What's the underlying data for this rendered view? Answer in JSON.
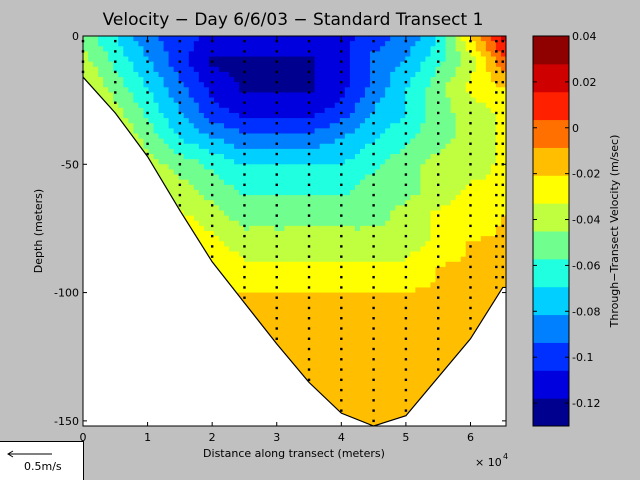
{
  "colors": {
    "background": "#c0c0c0",
    "colormap": [
      "#00008f",
      "#0000df",
      "#0030ff",
      "#0080ff",
      "#00cfff",
      "#20ffdf",
      "#70ff8f",
      "#bfff40",
      "#ffff00",
      "#ffbf00",
      "#ff7000",
      "#ff2000",
      "#cf0000",
      "#8f0000"
    ]
  },
  "chart_data": [
    {
      "type": "heatmap",
      "title": "Velocity − Day 6/6/03 − Standard Transect 1",
      "xlabel": "Distance along transect (meters)",
      "ylabel": "Depth (meters)",
      "x_multiplier": "× 10",
      "x_multiplier_exp": "4",
      "xlim": [
        0,
        65500
      ],
      "ylim": [
        -152,
        0
      ],
      "x_ticks": [
        "0",
        "1",
        "2",
        "3",
        "4",
        "5",
        "6"
      ],
      "y_ticks": [
        "0",
        "-50",
        "-100",
        "-150"
      ],
      "x_tick_values": [
        0,
        10000,
        20000,
        30000,
        40000,
        50000,
        60000
      ],
      "y_tick_values": [
        0,
        -50,
        -100,
        -150
      ],
      "grid": false,
      "bottom_profile": {
        "x": [
          0,
          5000,
          10000,
          15000,
          20000,
          25000,
          30000,
          35000,
          40000,
          45000,
          50000,
          55000,
          60000,
          65000,
          65500
        ],
        "depth": [
          -16,
          -30,
          -47,
          -68,
          -88,
          -104,
          -120,
          -135,
          -147,
          -152,
          -148,
          -133,
          -118,
          -98,
          -98
        ]
      },
      "velocity_field": {
        "z_unit": "m/sec",
        "x": [
          0,
          5000,
          10000,
          15000,
          20000,
          25000,
          30000,
          35000,
          40000,
          45000,
          50000,
          55000,
          60000,
          65000
        ],
        "depth": [
          0,
          -10,
          -20,
          -30,
          -40,
          -50,
          -60,
          -70,
          -80,
          -90,
          -100,
          -110,
          -120,
          -130,
          -140,
          -150
        ],
        "values": [
          [
            -0.05,
            -0.07,
            -0.09,
            -0.1,
            -0.11,
            -0.11,
            -0.11,
            -0.11,
            -0.11,
            -0.1,
            -0.09,
            -0.07,
            -0.02,
            0.02
          ],
          [
            -0.04,
            -0.06,
            -0.08,
            -0.1,
            -0.12,
            -0.12,
            -0.12,
            -0.12,
            -0.11,
            -0.09,
            -0.08,
            -0.06,
            -0.04,
            0.0
          ],
          [
            -0.03,
            -0.05,
            -0.07,
            -0.09,
            -0.11,
            -0.12,
            -0.12,
            -0.12,
            -0.11,
            -0.09,
            -0.07,
            -0.05,
            -0.03,
            -0.02
          ],
          [
            -0.02,
            -0.04,
            -0.06,
            -0.08,
            -0.1,
            -0.11,
            -0.11,
            -0.11,
            -0.1,
            -0.08,
            -0.07,
            -0.05,
            -0.04,
            -0.03
          ],
          [
            -0.02,
            -0.03,
            -0.05,
            -0.07,
            -0.08,
            -0.09,
            -0.09,
            -0.09,
            -0.08,
            -0.07,
            -0.06,
            -0.05,
            -0.04,
            -0.03
          ],
          [
            -0.02,
            -0.02,
            -0.04,
            -0.05,
            -0.06,
            -0.07,
            -0.07,
            -0.07,
            -0.07,
            -0.06,
            -0.05,
            -0.04,
            -0.04,
            -0.03
          ],
          [
            -0.02,
            -0.02,
            -0.03,
            -0.04,
            -0.05,
            -0.06,
            -0.06,
            -0.06,
            -0.06,
            -0.05,
            -0.05,
            -0.04,
            -0.03,
            -0.03
          ],
          [
            -0.02,
            -0.02,
            -0.02,
            -0.03,
            -0.04,
            -0.05,
            -0.05,
            -0.05,
            -0.05,
            -0.05,
            -0.04,
            -0.03,
            -0.03,
            -0.02
          ],
          [
            -0.02,
            -0.02,
            -0.02,
            -0.02,
            -0.03,
            -0.04,
            -0.04,
            -0.04,
            -0.04,
            -0.04,
            -0.04,
            -0.03,
            -0.02,
            -0.02
          ],
          [
            -0.02,
            -0.02,
            -0.02,
            -0.02,
            -0.02,
            -0.03,
            -0.03,
            -0.03,
            -0.03,
            -0.03,
            -0.03,
            -0.02,
            -0.02,
            -0.01
          ],
          [
            -0.02,
            -0.02,
            -0.02,
            -0.02,
            -0.02,
            -0.02,
            -0.02,
            -0.02,
            -0.02,
            -0.02,
            -0.02,
            -0.02,
            -0.02,
            -0.01
          ],
          [
            -0.02,
            -0.02,
            -0.02,
            -0.02,
            -0.02,
            -0.02,
            -0.02,
            -0.02,
            -0.02,
            -0.02,
            -0.02,
            -0.02,
            -0.01,
            -0.01
          ],
          [
            -0.02,
            -0.02,
            -0.02,
            -0.02,
            -0.02,
            -0.02,
            -0.02,
            -0.02,
            -0.02,
            -0.02,
            -0.02,
            -0.01,
            -0.01,
            -0.01
          ],
          [
            -0.02,
            -0.02,
            -0.02,
            -0.02,
            -0.02,
            -0.02,
            -0.02,
            -0.02,
            -0.02,
            -0.02,
            -0.01,
            -0.01,
            -0.01,
            -0.01
          ],
          [
            -0.02,
            -0.02,
            -0.02,
            -0.02,
            -0.02,
            -0.02,
            -0.02,
            -0.02,
            -0.02,
            -0.01,
            -0.01,
            -0.01,
            -0.01,
            -0.01
          ],
          [
            -0.01,
            -0.01,
            -0.01,
            -0.01,
            -0.01,
            -0.01,
            -0.01,
            -0.01,
            -0.01,
            -0.01,
            -0.01,
            -0.01,
            -0.01,
            -0.01
          ]
        ]
      },
      "sample_stations": {
        "x": [
          0,
          5000,
          10000,
          15000,
          20000,
          25000,
          30000,
          35000,
          40000,
          45000,
          50000,
          55000,
          60000,
          64000,
          65000
        ]
      },
      "colorbar": {
        "label": "Through−Transect Velocity (m/sec)",
        "range": [
          -0.13,
          0.04
        ],
        "ticks": [
          "0.04",
          "0.02",
          "0",
          "-0.02",
          "-0.04",
          "-0.06",
          "-0.08",
          "-0.1",
          "-0.12"
        ],
        "tick_values": [
          0.04,
          0.02,
          0,
          -0.02,
          -0.04,
          -0.06,
          -0.08,
          -0.1,
          -0.12
        ]
      },
      "scale_vector": {
        "label": "0.5m/s"
      }
    }
  ]
}
